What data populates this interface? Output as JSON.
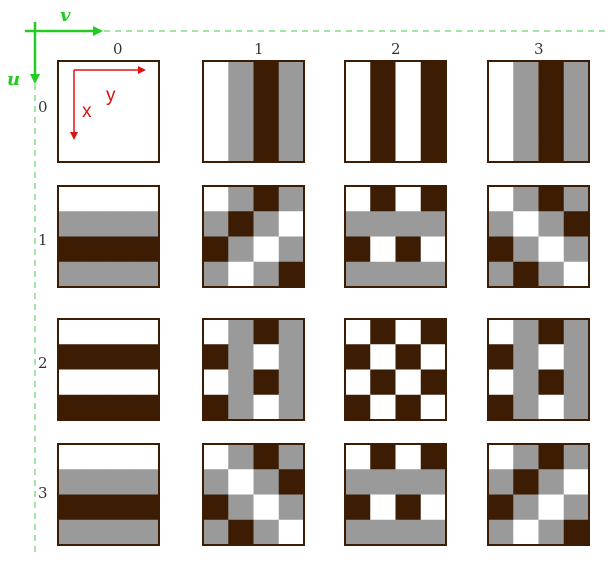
{
  "axes": {
    "v_label": "v",
    "u_label": "u",
    "x_label": "x",
    "y_label": "y"
  },
  "column_labels": [
    "0",
    "1",
    "2",
    "3"
  ],
  "row_labels": [
    "0",
    "1",
    "2",
    "3"
  ],
  "colors": {
    "dark": "#3d1c04",
    "gray": "#9a9a9a",
    "light": "#ffffff",
    "frame": "#3d1c04",
    "axis_green": "#22cc22",
    "dash_green": "#44cc44",
    "inner_axes_red": "#e01010"
  },
  "basis": [
    [
      [
        "WWWW",
        "WWWW",
        "WWWW",
        "WWWW"
      ],
      [
        "WGDG",
        "WGDG",
        "WGDG",
        "WGDG"
      ],
      [
        "WDWD",
        "WDWD",
        "WDWD",
        "WDWD"
      ],
      [
        "WGDG",
        "WGDG",
        "WGDG",
        "WGDG"
      ]
    ],
    [
      [
        "WWWW",
        "GGGG",
        "DDDD",
        "GGGG"
      ],
      [
        "WGDG",
        "GDGW",
        "DGWG",
        "GWGD"
      ],
      [
        "WDWD",
        "GGGG",
        "DWDW",
        "GGGG"
      ],
      [
        "WGDG",
        "GWGD",
        "DGWG",
        "GDGW"
      ]
    ],
    [
      [
        "WWWW",
        "DDDD",
        "WWWW",
        "DDDD"
      ],
      [
        "WGDG",
        "DGWG",
        "WGDG",
        "DGWG"
      ],
      [
        "WDWD",
        "DWDW",
        "WDWD",
        "DWDW"
      ],
      [
        "WGDG",
        "DGWG",
        "WGDG",
        "DGWG"
      ]
    ],
    [
      [
        "WWWW",
        "GGGG",
        "DDDD",
        "GGGG"
      ],
      [
        "WGDG",
        "GWGD",
        "DGWG",
        "GDGW"
      ],
      [
        "WDWD",
        "GGGG",
        "DWDW",
        "GGGG"
      ],
      [
        "WGDG",
        "GDGW",
        "DGWG",
        "GWGD"
      ]
    ]
  ]
}
